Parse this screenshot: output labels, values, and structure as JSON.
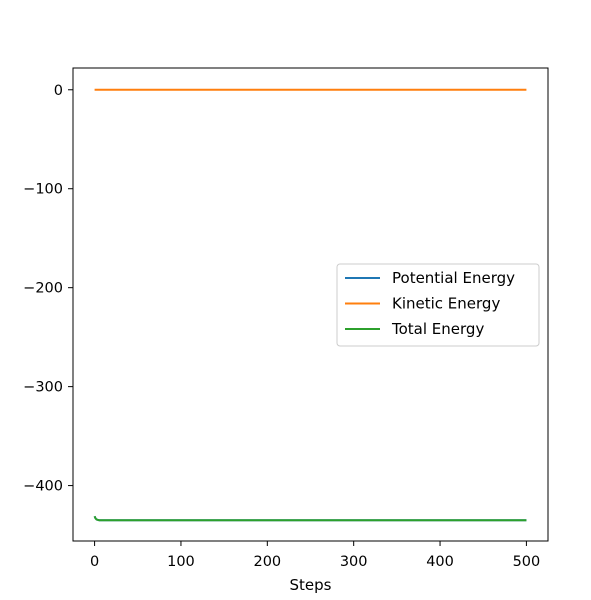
{
  "chart_data": {
    "type": "line",
    "title": "",
    "xlabel": "Steps",
    "ylabel": "",
    "xlim": [
      -25,
      525
    ],
    "ylim": [
      -456,
      22
    ],
    "xticks": [
      0,
      100,
      200,
      300,
      400,
      500
    ],
    "xtick_labels": [
      "0",
      "100",
      "200",
      "300",
      "400",
      "500"
    ],
    "yticks": [
      0,
      -100,
      -200,
      -300,
      -400
    ],
    "ytick_labels": [
      "0",
      "−100",
      "−200",
      "−300",
      "−400"
    ],
    "grid": false,
    "legend_position": "center-right",
    "series": [
      {
        "name": "Potential Energy",
        "color": "#1f77b4",
        "x": [
          0,
          1,
          2,
          3,
          5,
          10,
          50,
          100,
          200,
          300,
          400,
          500
        ],
        "y": [
          -431,
          -433,
          -434,
          -434.5,
          -435,
          -435,
          -435,
          -435,
          -435,
          -435,
          -435,
          -435
        ]
      },
      {
        "name": "Kinetic Energy",
        "color": "#ff7f0e",
        "x": [
          0,
          100,
          200,
          300,
          400,
          500
        ],
        "y": [
          0,
          0,
          0,
          0,
          0,
          0
        ]
      },
      {
        "name": "Total Energy",
        "color": "#2ca02c",
        "x": [
          0,
          1,
          2,
          3,
          5,
          10,
          50,
          100,
          200,
          300,
          400,
          500
        ],
        "y": [
          -431,
          -433,
          -434,
          -434.5,
          -435,
          -435,
          -435,
          -435,
          -435,
          -435,
          -435,
          -435
        ]
      }
    ]
  }
}
